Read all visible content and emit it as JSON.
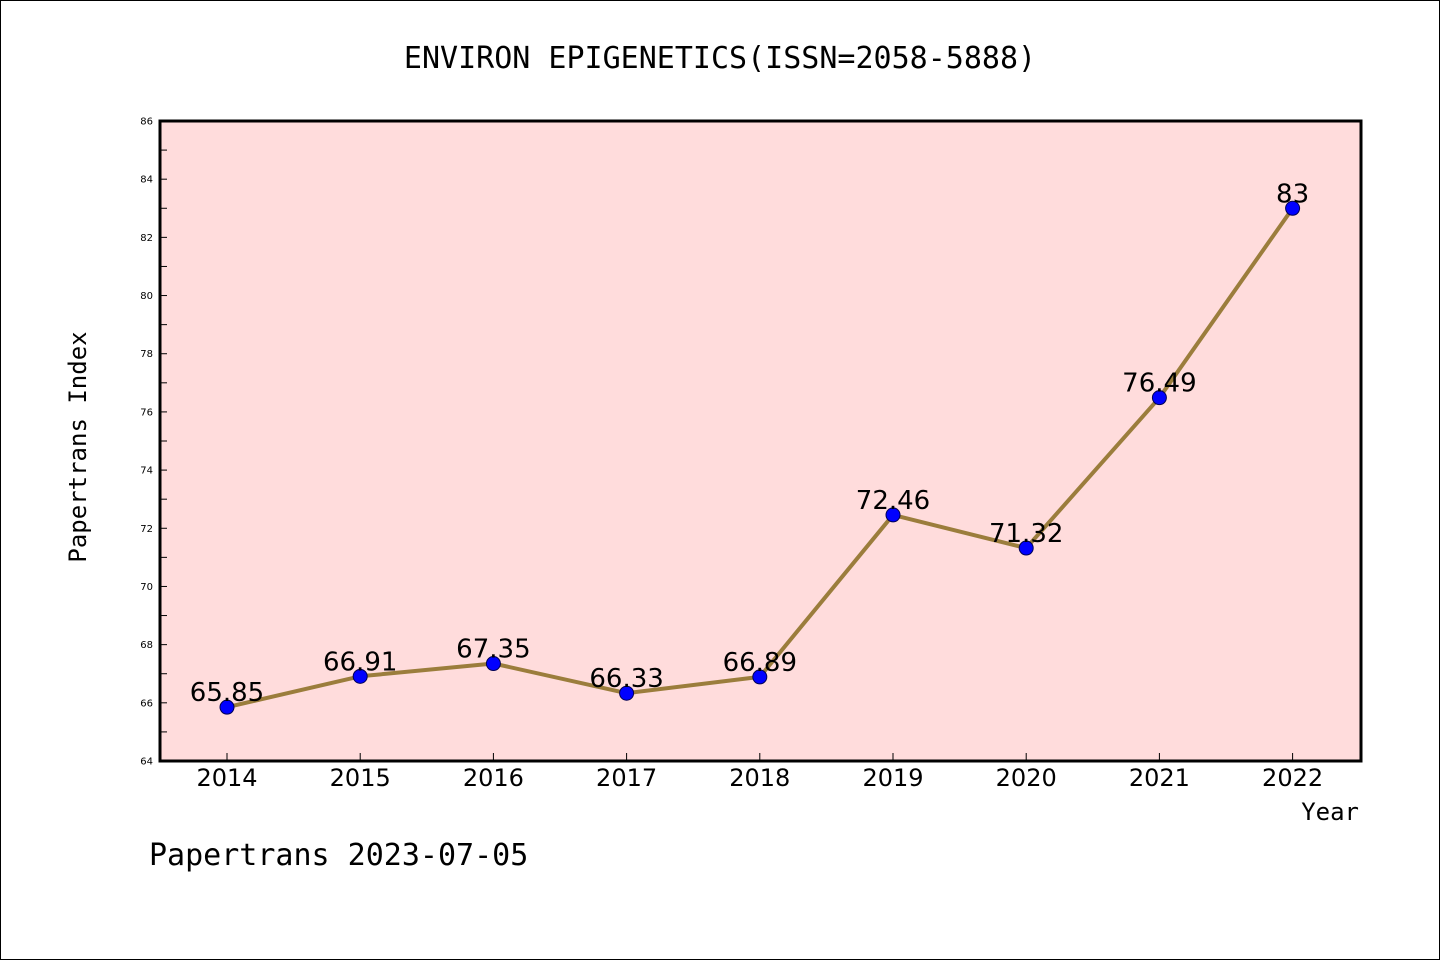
{
  "chart_data": {
    "type": "line",
    "title": "ENVIRON EPIGENETICS(ISSN=2058-5888)",
    "xlabel": "Year",
    "ylabel": "Papertrans Index",
    "categories": [
      "2014",
      "2015",
      "2016",
      "2017",
      "2018",
      "2019",
      "2020",
      "2021",
      "2022"
    ],
    "series": [
      {
        "values": [
          65.85,
          66.91,
          67.35,
          66.33,
          66.89,
          72.46,
          71.32,
          76.49,
          83
        ],
        "labels": [
          "65.85",
          "66.91",
          "67.35",
          "66.33",
          "66.89",
          "72.46",
          "71.32",
          "76.49",
          "83"
        ]
      }
    ],
    "ylim": [
      64,
      86
    ],
    "yticks": [
      64,
      66,
      68,
      70,
      72,
      74,
      76,
      78,
      80,
      82,
      84,
      86
    ],
    "grid": false,
    "colors": {
      "plot_background": "#ffdcdc",
      "line": "#9b7d3c",
      "marker": "#0000ff"
    }
  },
  "footer": "Papertrans 2023-07-05"
}
